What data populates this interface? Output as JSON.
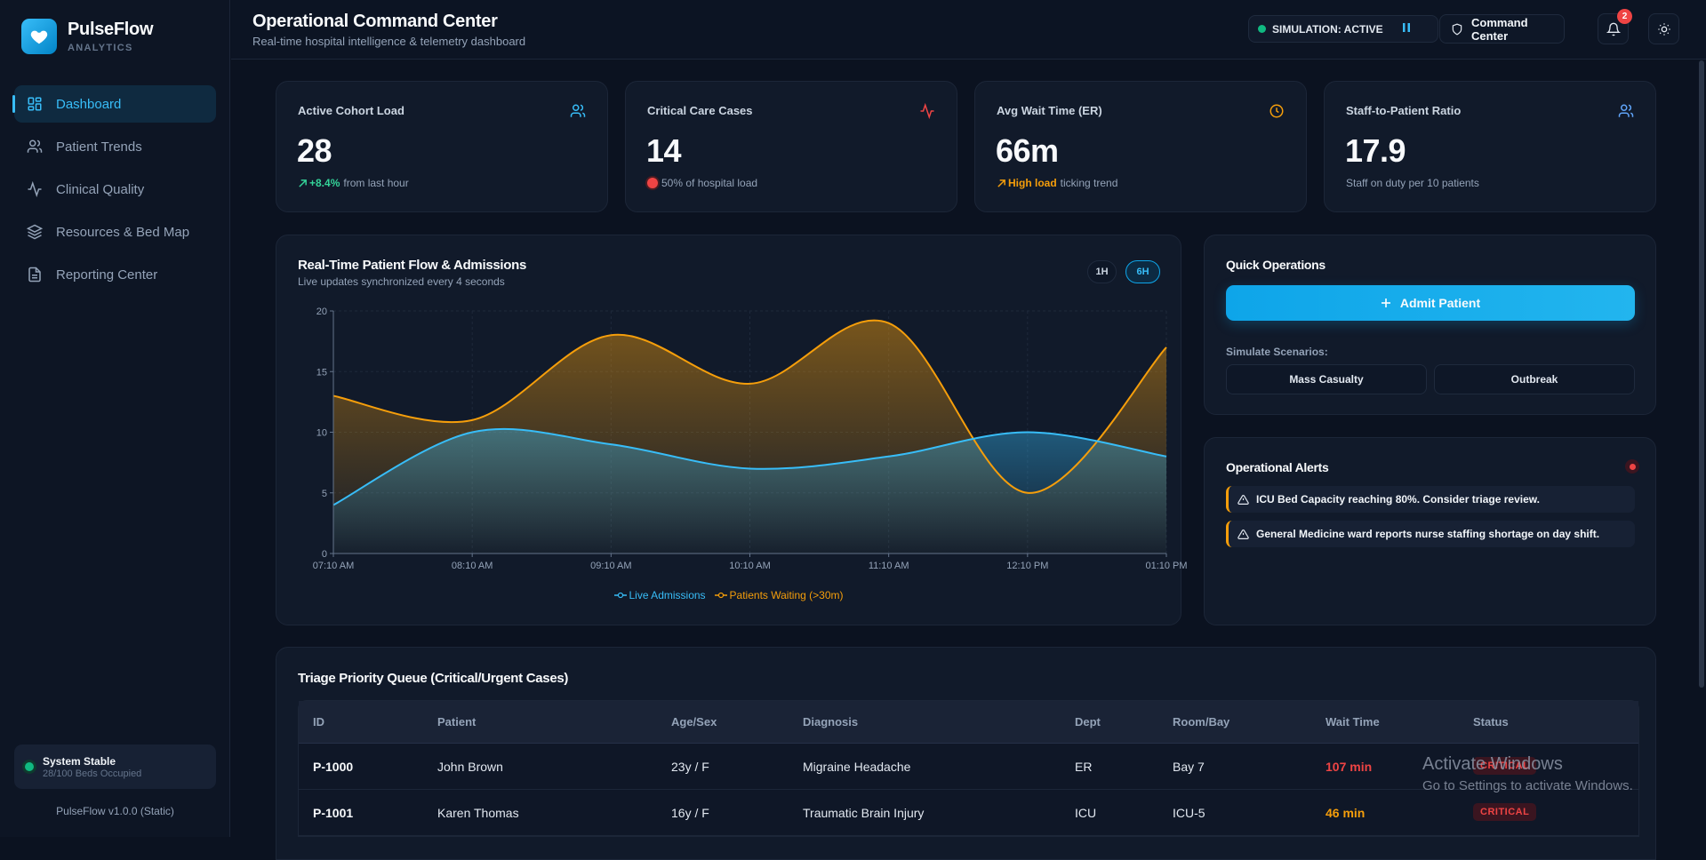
{
  "brand": {
    "name": "PulseFlow",
    "sub": "ANALYTICS"
  },
  "nav": [
    {
      "label": "Dashboard",
      "icon": "dashboard-icon",
      "active": true
    },
    {
      "label": "Patient Trends",
      "icon": "users-icon"
    },
    {
      "label": "Clinical Quality",
      "icon": "activity-icon"
    },
    {
      "label": "Resources & Bed Map",
      "icon": "layers-icon"
    },
    {
      "label": "Reporting Center",
      "icon": "document-icon"
    }
  ],
  "system": {
    "title": "System Stable",
    "sub": "28/100 Beds Occupied",
    "version": "PulseFlow v1.0.0 (Static)"
  },
  "header": {
    "title": "Operational Command Center",
    "subtitle": "Real-time hospital intelligence & telemetry dashboard",
    "simulation": "SIMULATION: ACTIVE",
    "command_center": "Command Center",
    "notifications": "2"
  },
  "stats": [
    {
      "label": "Active Cohort Load",
      "value": "28",
      "delta": "+8.4%",
      "foot": "from last hour",
      "icon": "users-icon",
      "icon_color": "#38bdf8"
    },
    {
      "label": "Critical Care Cases",
      "value": "14",
      "foot": "50% of hospital load",
      "icon": "activity-icon",
      "icon_color": "#ef4444"
    },
    {
      "label": "Avg Wait Time (ER)",
      "value": "66m",
      "strong": "High load",
      "foot": "ticking trend",
      "icon": "clock-icon",
      "icon_color": "#f59e0b"
    },
    {
      "label": "Staff-to-Patient Ratio",
      "value": "17.9",
      "foot": "Staff on duty per 10 patients",
      "icon": "users-icon",
      "icon_color": "#60a5fa"
    }
  ],
  "chart": {
    "title": "Real-Time Patient Flow & Admissions",
    "subtitle": "Live updates synchronized every 4 seconds",
    "ranges": [
      "1H",
      "6H"
    ],
    "active_range": "6H"
  },
  "chart_data": {
    "type": "area",
    "x": [
      "07:10 AM",
      "08:10 AM",
      "09:10 AM",
      "10:10 AM",
      "11:10 AM",
      "12:10 PM",
      "01:10 PM"
    ],
    "ylim": [
      0,
      20
    ],
    "yticks": [
      0,
      5,
      10,
      15,
      20
    ],
    "grid": true,
    "legend": "bottom",
    "series": [
      {
        "name": "Live Admissions",
        "color": "#38bdf8",
        "values": [
          4,
          10,
          9,
          7,
          8,
          10,
          8
        ]
      },
      {
        "name": "Patients Waiting (>30m)",
        "color": "#f59e0b",
        "values": [
          13,
          11,
          18,
          14,
          19,
          5,
          17
        ]
      }
    ]
  },
  "quick_ops": {
    "title": "Quick Operations",
    "admit": "Admit Patient",
    "simulate_label": "Simulate Scenarios:",
    "scenarios": [
      "Mass Casualty",
      "Outbreak"
    ]
  },
  "alerts": {
    "title": "Operational Alerts",
    "items": [
      "ICU Bed Capacity reaching 80%. Consider triage review.",
      "General Medicine ward reports nurse staffing shortage on day shift."
    ]
  },
  "triage": {
    "title": "Triage Priority Queue (Critical/Urgent Cases)",
    "columns": [
      "ID",
      "Patient",
      "Age/Sex",
      "Diagnosis",
      "Dept",
      "Room/Bay",
      "Wait Time",
      "Status"
    ],
    "rows": [
      {
        "id": "P-1000",
        "patient": "John Brown",
        "age": "23y / F",
        "diagnosis": "Migraine Headache",
        "dept": "ER",
        "room": "Bay 7",
        "wait": "107 min",
        "wait_color": "red",
        "status": "CRITICAL"
      },
      {
        "id": "P-1001",
        "patient": "Karen Thomas",
        "age": "16y / F",
        "diagnosis": "Traumatic Brain Injury",
        "dept": "ICU",
        "room": "ICU-5",
        "wait": "46 min",
        "wait_color": "orange",
        "status": "CRITICAL"
      }
    ]
  },
  "watermark": {
    "line1": "Activate Windows",
    "line2": "Go to Settings to activate Windows."
  }
}
